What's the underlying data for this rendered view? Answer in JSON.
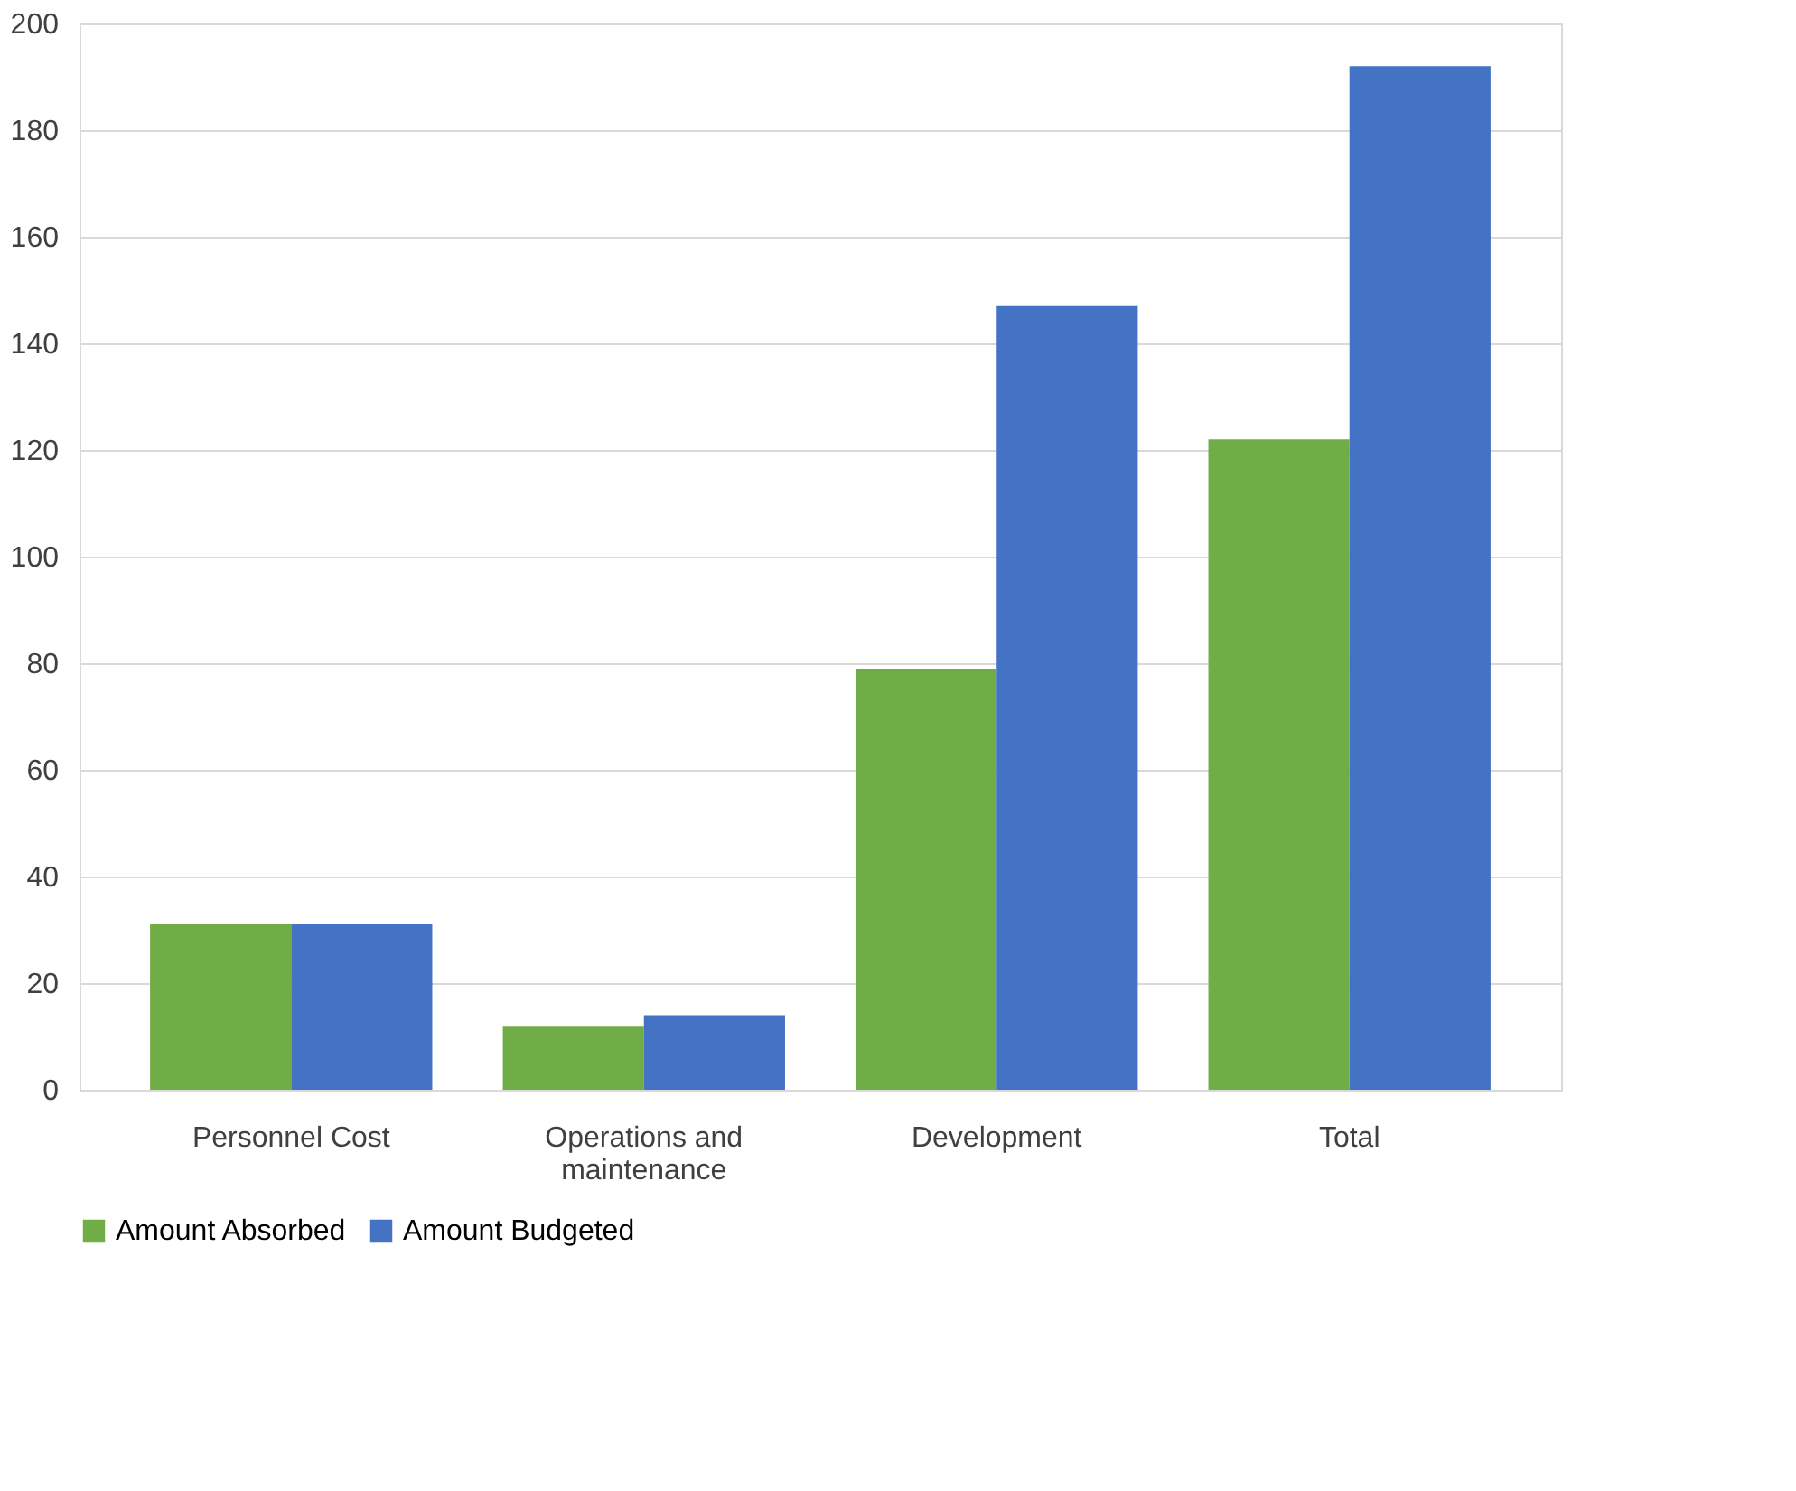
{
  "chart_data": {
    "type": "bar",
    "categories": [
      "Personnel Cost",
      "Operations and maintenance",
      "Development",
      "Total"
    ],
    "series": [
      {
        "name": "Amount Absorbed",
        "color": "#70ad47",
        "values": [
          31,
          12,
          79,
          122
        ]
      },
      {
        "name": "Amount Budgeted",
        "color": "#4472c4",
        "values": [
          31,
          14,
          147,
          192
        ]
      }
    ],
    "ylim": [
      0,
      200
    ],
    "yticks": [
      0,
      20,
      40,
      60,
      80,
      100,
      120,
      140,
      160,
      180,
      200
    ],
    "grid": "y",
    "legend": "bottom"
  }
}
